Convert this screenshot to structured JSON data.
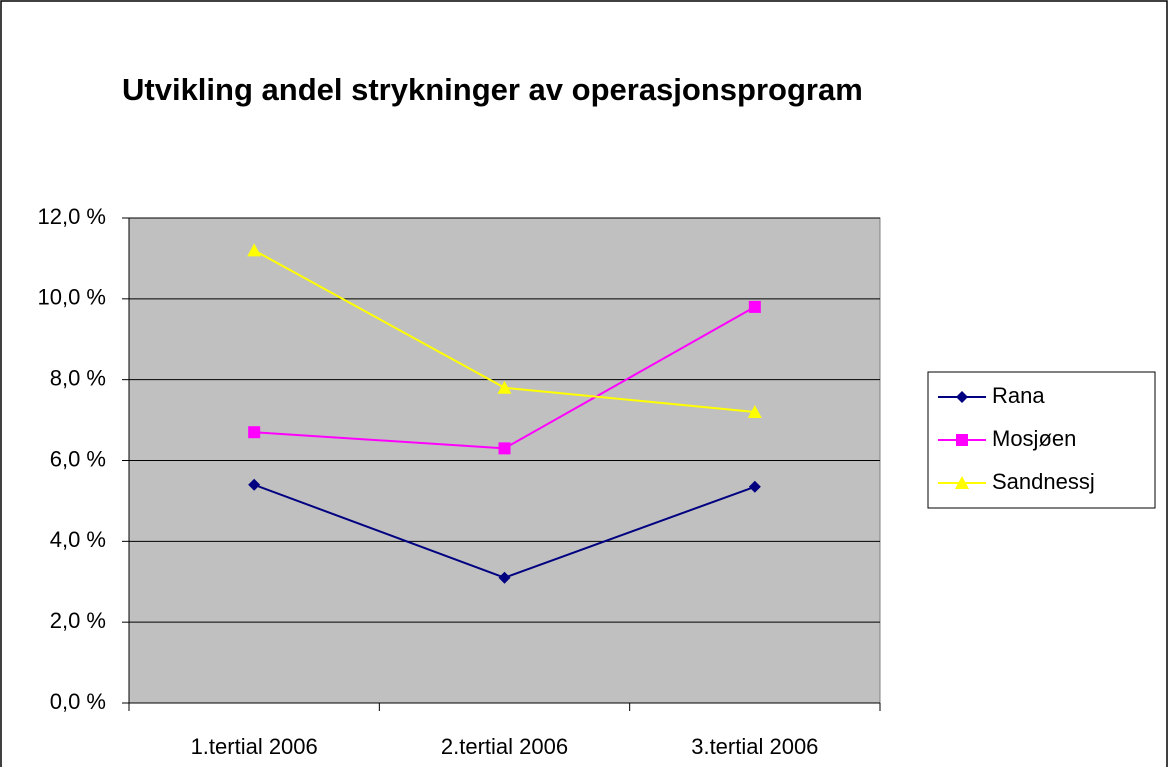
{
  "chart_data": {
    "type": "line",
    "title": "Utvikling andel strykninger av operasjonsprogram",
    "categories": [
      "1.tertial 2006",
      "2.tertial 2006",
      "3.tertial 2006"
    ],
    "series": [
      {
        "name": "Rana",
        "color": "#000080",
        "marker": "diamond",
        "values": [
          5.4,
          3.1,
          5.35
        ]
      },
      {
        "name": "Mosjøen",
        "color": "#FF00FF",
        "marker": "square",
        "values": [
          6.7,
          6.3,
          9.8
        ]
      },
      {
        "name": "Sandnessj",
        "color": "#FFFF00",
        "marker": "triangle",
        "values": [
          11.2,
          7.8,
          7.2
        ]
      }
    ],
    "ylim": [
      0,
      12
    ],
    "yticks": [
      {
        "value": 0,
        "label": "0,0 %"
      },
      {
        "value": 2,
        "label": "2,0 %"
      },
      {
        "value": 4,
        "label": "4,0 %"
      },
      {
        "value": 6,
        "label": "6,0 %"
      },
      {
        "value": 8,
        "label": "8,0 %"
      },
      {
        "value": 10,
        "label": "10,0 %"
      },
      {
        "value": 12,
        "label": "12,0 %"
      }
    ],
    "grid": true,
    "plot_background": "#C0C0C0",
    "legend": "right"
  }
}
